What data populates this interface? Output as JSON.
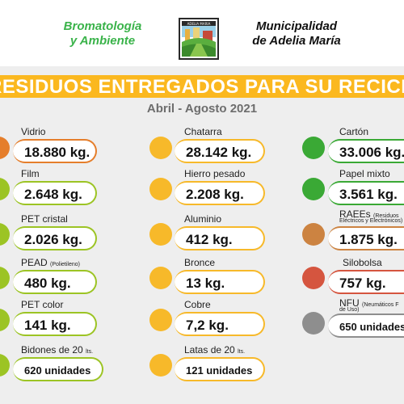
{
  "header": {
    "left_line1": "Bromatología",
    "left_line2": "y Ambiente",
    "logo_text": "ADELIA MARIA",
    "right_line1": "Municipalidad",
    "right_line2": "de Adelia María"
  },
  "banner": {
    "title": "RESIDUOS ENTREGADOS PARA SU RECICLAJE",
    "period": "Abril - Agosto 2021"
  },
  "colors": {
    "orange": "#e57e2b",
    "yellow_green": "#9cc424",
    "yellow": "#f7b92a",
    "green": "#3aa935",
    "brown": "#cc8341",
    "red": "#d5553f",
    "gray": "#8e8e8e",
    "banner": "#fbb81f"
  },
  "col1": [
    {
      "label": "Vidrio",
      "value": "18.880 kg."
    },
    {
      "label": "Film",
      "value": "2.648 kg."
    },
    {
      "label": "PET cristal",
      "value": "2.026 kg."
    },
    {
      "label": "PEAD",
      "note": "(Polietileno)",
      "value": "480 kg."
    },
    {
      "label": "PET color",
      "value": "141 kg."
    },
    {
      "label": "Bidones de 20",
      "note": "lts.",
      "value": "620 unidades"
    }
  ],
  "col2": [
    {
      "label": "Chatarra",
      "value": "28.142 kg."
    },
    {
      "label": "Hierro pesado",
      "value": "2.208 kg."
    },
    {
      "label": "Aluminio",
      "value": "412 kg."
    },
    {
      "label": "Bronce",
      "value": "13 kg."
    },
    {
      "label": "Cobre",
      "value": "7,2 kg."
    },
    {
      "label": "Latas de 20",
      "note": "lts.",
      "value": "121 unidades"
    }
  ],
  "col3": [
    {
      "label": "Cartón",
      "value": "33.006 kg."
    },
    {
      "label": "Papel mixto",
      "value": "3.561 kg."
    },
    {
      "label": "RAEEs",
      "note": "(Residuos",
      "note2": "Eléctricos y Electrónicos)",
      "value": "1.875 kg."
    },
    {
      "label": "Silobolsa",
      "value": "757 kg."
    },
    {
      "label": "NFU",
      "note": "(Neumáticos F",
      "note2": "de Uso)",
      "value": "650 unidades"
    }
  ]
}
